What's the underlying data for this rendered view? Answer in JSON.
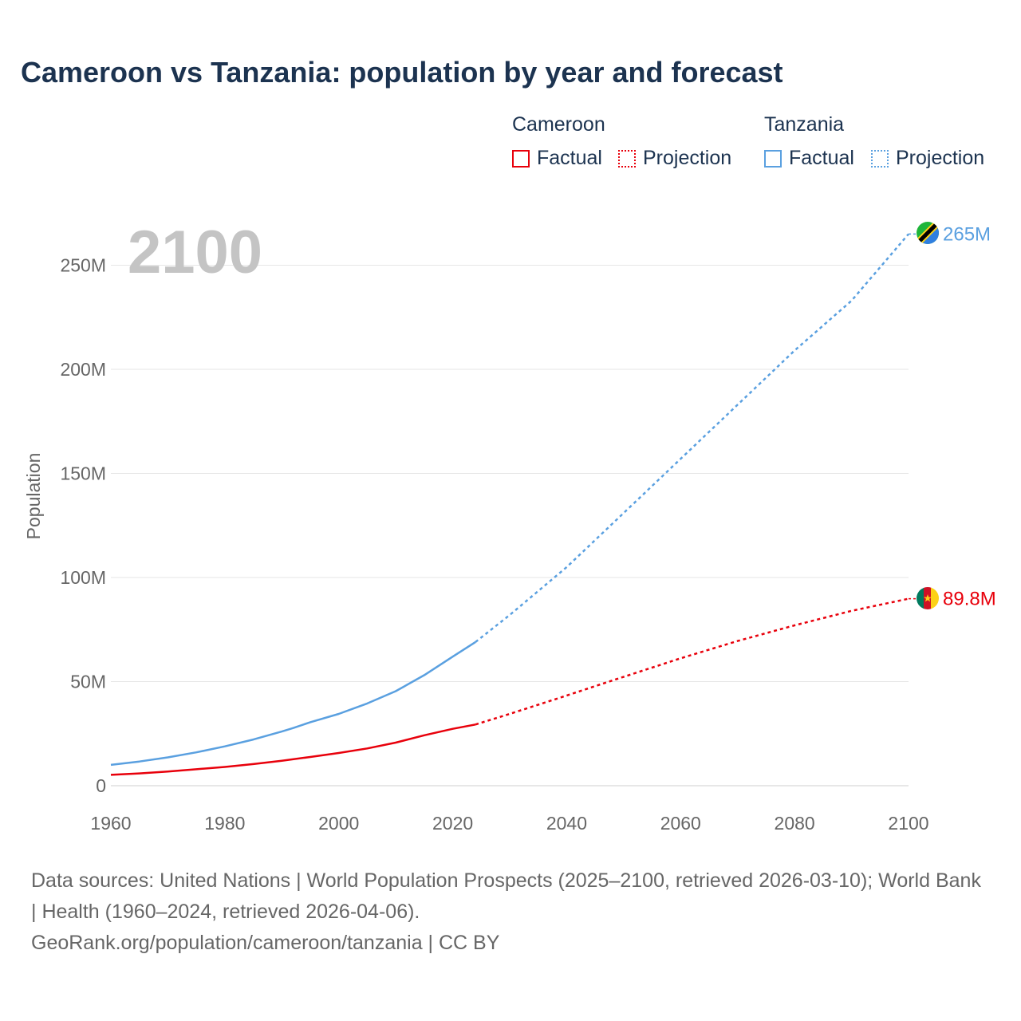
{
  "title": "Cameroon vs Tanzania: population by year and forecast",
  "legend": {
    "groups": [
      {
        "name": "Cameroon",
        "factual": "Factual",
        "projection": "Projection",
        "color": "#e8000b"
      },
      {
        "name": "Tanzania",
        "factual": "Factual",
        "projection": "Projection",
        "color": "#5aa0e0"
      }
    ]
  },
  "source": {
    "line1": "Data sources: United Nations | World Population Prospects (2025–2100, retrieved 2026-03-10); World Bank | Health (1960–2024, retrieved 2026-04-06).",
    "line2": "GeoRank.org/population/cameroon/tanzania | CC BY"
  },
  "chart_data": {
    "type": "line",
    "title": "Cameroon vs Tanzania: population by year and forecast",
    "year_label": "2100",
    "ylabel": "Population",
    "xlabel": "",
    "xlim": [
      1960,
      2100
    ],
    "ylim": [
      0,
      265000000
    ],
    "x_ticks": [
      1960,
      1980,
      2000,
      2020,
      2040,
      2060,
      2080,
      2100
    ],
    "y_ticks": [
      0,
      50000000,
      100000000,
      150000000,
      200000000,
      250000000
    ],
    "y_tick_labels": [
      "0",
      "50M",
      "100M",
      "150M",
      "200M",
      "250M"
    ],
    "projection_start": 2024,
    "series": [
      {
        "name": "Cameroon",
        "color": "#e8000b",
        "end_label": "89.8M",
        "x": [
          1960,
          1965,
          1970,
          1975,
          1980,
          1985,
          1990,
          1995,
          2000,
          2005,
          2010,
          2015,
          2020,
          2024,
          2030,
          2040,
          2050,
          2060,
          2070,
          2080,
          2090,
          2100
        ],
        "values": [
          5200000,
          5900000,
          6800000,
          7900000,
          9000000,
          10400000,
          12000000,
          13800000,
          15700000,
          17900000,
          20700000,
          24200000,
          27300000,
          29400000,
          34500000,
          43300000,
          52300000,
          61200000,
          69500000,
          77000000,
          84000000,
          89800000
        ]
      },
      {
        "name": "Tanzania",
        "color": "#5aa0e0",
        "end_label": "265M",
        "x": [
          1960,
          1965,
          1970,
          1975,
          1980,
          1985,
          1990,
          1992,
          1995,
          2000,
          2005,
          2010,
          2015,
          2020,
          2024,
          2030,
          2040,
          2050,
          2060,
          2070,
          2080,
          2090,
          2100
        ],
        "values": [
          10000000,
          11600000,
          13600000,
          16000000,
          18900000,
          22200000,
          26000000,
          27700000,
          30500000,
          34500000,
          39500000,
          45400000,
          53100000,
          62000000,
          69000000,
          82000000,
          105000000,
          131000000,
          157000000,
          183000000,
          209000000,
          233000000,
          265000000
        ]
      }
    ]
  }
}
